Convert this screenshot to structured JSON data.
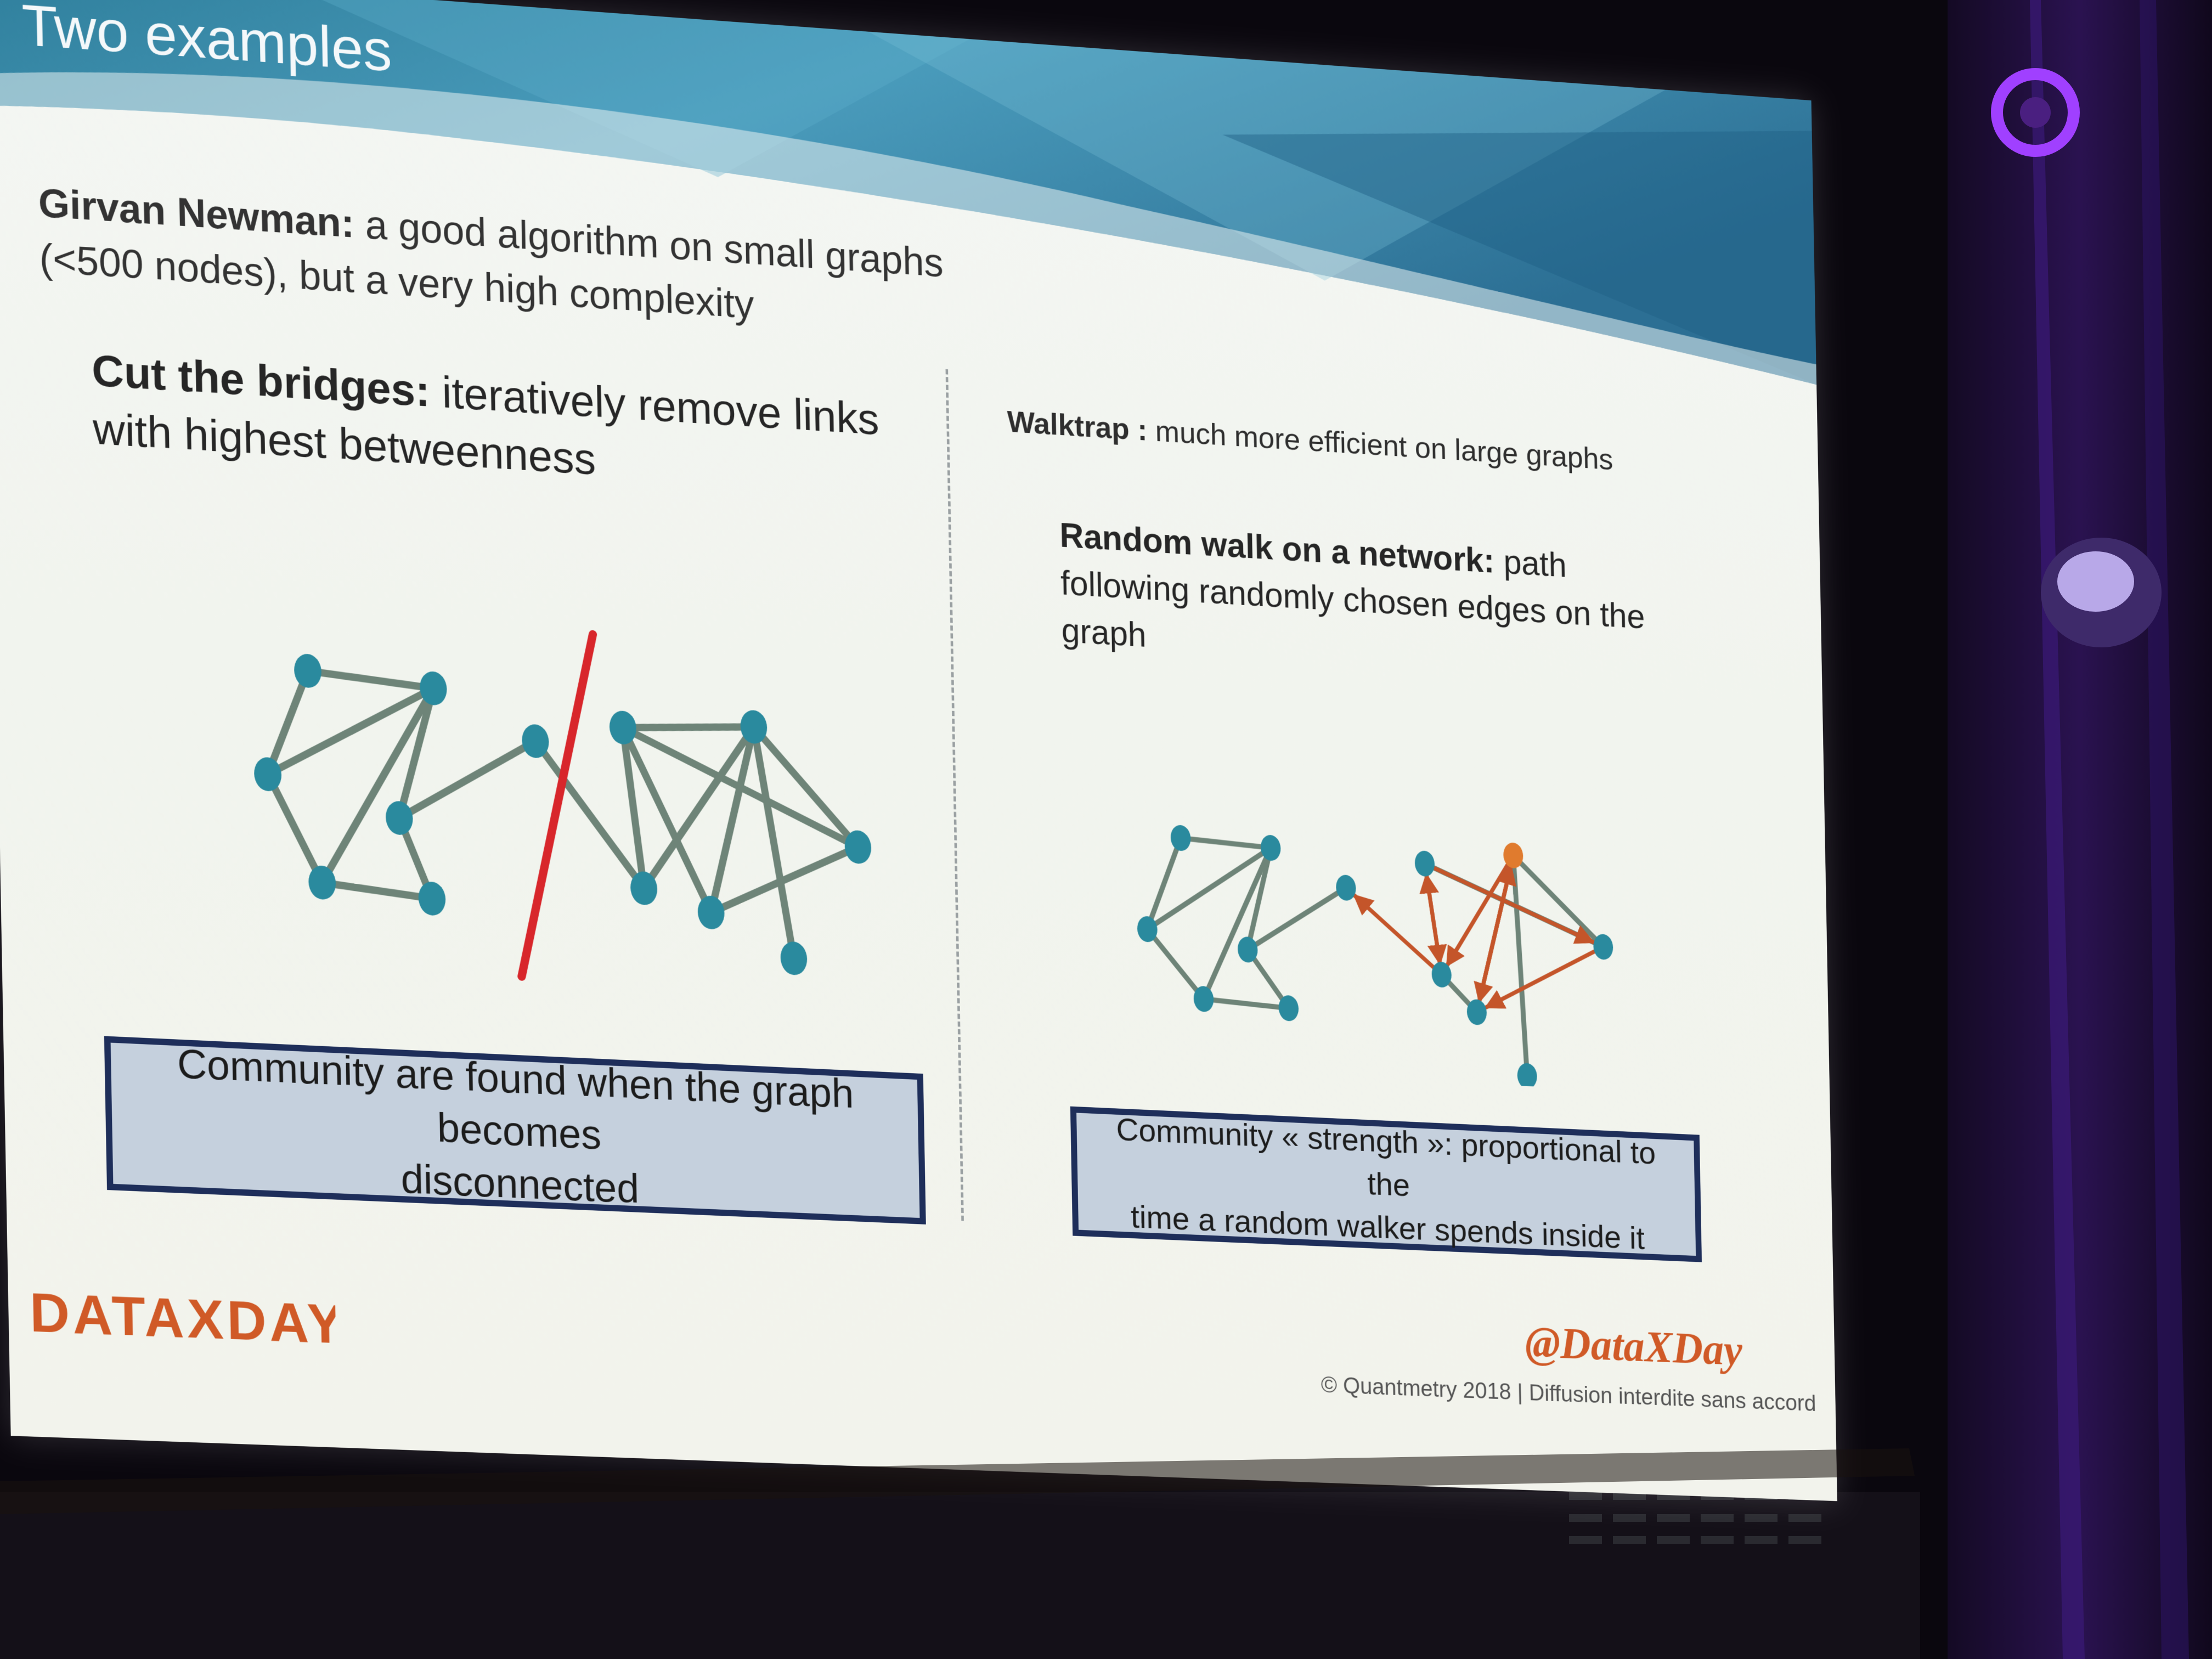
{
  "slide": {
    "title": "Two examples",
    "left": {
      "intro_bold": "Girvan Newman:",
      "intro_line1_rest": " a good algorithm on small graphs",
      "intro_line2": "(<500 nodes), but a very high complexity",
      "cut_bold": "Cut the bridges:",
      "cut_line1_rest": " iteratively remove links",
      "cut_line2": "with highest betweenness",
      "box_line1": "Community are found when the graph becomes",
      "box_line2": "disconnected"
    },
    "right": {
      "intro_bold": "Walktrap :",
      "intro_rest": " much more efficient on large graphs",
      "walk_bold": "Random walk on a network:",
      "walk_line1_rest": " path",
      "walk_line2": "following randomly chosen edges on the",
      "walk_line3": "graph",
      "box_line1": "Community « strength »: proportional to the",
      "box_line2": "time a random walker spends inside it"
    },
    "footer": {
      "logo": "DATAXDAY",
      "handle": "@DataXDay",
      "copyright": "© Quantmetry 2018 | Diffusion interdite sans accord"
    }
  },
  "colors": {
    "node": "#2a8a9e",
    "edge": "#6e8478",
    "bridge_cut": "#d8262b",
    "walk_edge": "#c4552a",
    "walk_start": "#e07b2e",
    "box_fill": "#c5d0dd",
    "box_border": "#1e2e5a",
    "banner": "#3c8fb0",
    "handle": "#d05a27"
  }
}
